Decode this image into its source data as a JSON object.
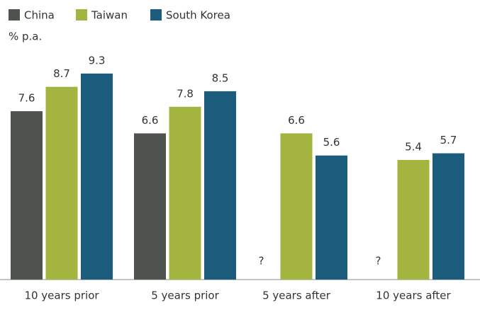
{
  "chart_data": {
    "type": "bar",
    "y_label": "% p.a.",
    "categories": [
      "10 years prior",
      "5 years prior",
      "5 years after",
      "10 years after"
    ],
    "series": [
      {
        "name": "China",
        "color": "#4f534e",
        "values": [
          7.6,
          6.6,
          null,
          null
        ],
        "value_labels": [
          null,
          null,
          "?",
          "?"
        ]
      },
      {
        "name": "Taiwan",
        "color": "#a3b53f",
        "values": [
          8.7,
          7.8,
          6.6,
          5.4
        ]
      },
      {
        "name": "South Korea",
        "color": "#1c5c7c",
        "values": [
          9.3,
          8.5,
          5.6,
          5.7
        ]
      }
    ],
    "ylim": [
      0,
      10
    ],
    "legend": "top-left"
  }
}
